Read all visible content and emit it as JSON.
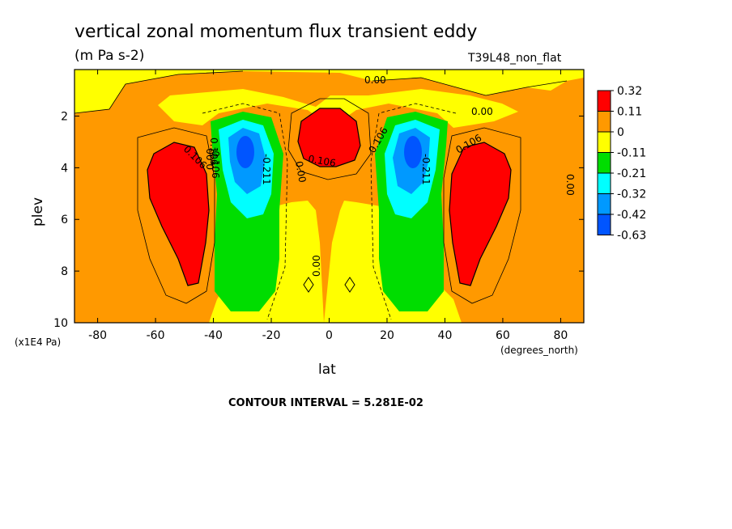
{
  "chart_data": {
    "type": "heatmap",
    "title": "vertical zonal momentum flux transient eddy",
    "units": "(m Pa s-2)",
    "run_label": "T39L48_non_flat",
    "xlabel": "lat",
    "x_units": "(degrees_north)",
    "ylabel": "plev",
    "y_units": "(x1E4 Pa)",
    "xlim": [
      -88,
      88
    ],
    "ylim": [
      10,
      0.2
    ],
    "xticks": [
      -80,
      -60,
      -40,
      -20,
      0,
      20,
      40,
      60,
      80
    ],
    "xtick_labels": [
      "-80",
      "-60",
      "-40",
      "-20",
      "0",
      "20",
      "40",
      "60",
      "80"
    ],
    "yticks": [
      2,
      4,
      6,
      8,
      10
    ],
    "ytick_labels": [
      "2",
      "4",
      "6",
      "8",
      "10"
    ],
    "contour_interval_text": "CONTOUR INTERVAL = 5.281E-02",
    "colorbar": {
      "labels": [
        "0.32",
        "0.11",
        "0",
        "-0.11",
        "-0.21",
        "-0.32",
        "-0.42",
        "-0.63"
      ],
      "colors": [
        "#ff0000",
        "#ff9900",
        "#ffff00",
        "#00dd00",
        "#00ffff",
        "#0099ff",
        "#0055ff"
      ]
    },
    "contour_labels": [
      "0.00",
      "0.00",
      "0.00",
      "0.106",
      "0.106",
      "0.106",
      "0.106",
      "0.106",
      "-0.211",
      "-0.211",
      "0.00",
      "0.00",
      "0.00",
      "-0.106"
    ],
    "features": [
      {
        "name": "southern positive maximum",
        "lat": -52,
        "plev": 4.5,
        "value": 0.32
      },
      {
        "name": "southern negative minimum",
        "lat": -30,
        "plev": 3.4,
        "value": -0.63
      },
      {
        "name": "equatorial positive maximum",
        "lat": 0,
        "plev": 3.0,
        "value": 0.32
      },
      {
        "name": "northern negative minimum",
        "lat": 30,
        "plev": 3.4,
        "value": -0.63
      },
      {
        "name": "northern positive maximum",
        "lat": 52,
        "plev": 4.5,
        "value": 0.32
      }
    ]
  }
}
